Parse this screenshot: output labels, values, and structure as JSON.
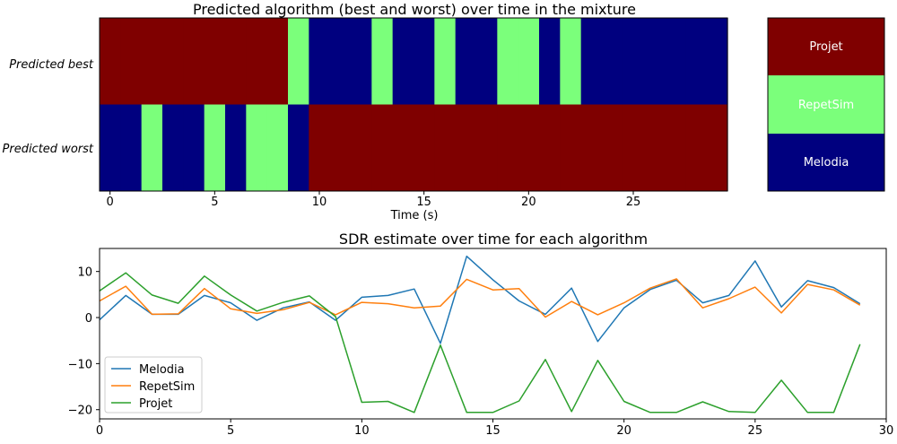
{
  "chart_data": [
    {
      "type": "heatmap",
      "title": "Predicted algorithm (best and worst) over time in the mixture",
      "xlabel": "Time (s)",
      "xlim": [
        -0.5,
        29.5
      ],
      "xticks": [
        0,
        5,
        10,
        15,
        20,
        25
      ],
      "rows": [
        "Predicted best",
        "Predicted worst"
      ],
      "categories": [
        "Melodia",
        "RepetSim",
        "Projet"
      ],
      "category_colors": {
        "Melodia": "#00007f",
        "RepetSim": "#7bff7b",
        "Projet": "#7f0000"
      },
      "colorbar_order": [
        "Projet",
        "RepetSim",
        "Melodia"
      ],
      "best": [
        "Projet",
        "Projet",
        "Projet",
        "Projet",
        "Projet",
        "Projet",
        "Projet",
        "Projet",
        "Projet",
        "RepetSim",
        "Melodia",
        "Melodia",
        "Melodia",
        "RepetSim",
        "Melodia",
        "Melodia",
        "RepetSim",
        "Melodia",
        "Melodia",
        "RepetSim",
        "RepetSim",
        "Melodia",
        "RepetSim",
        "Melodia",
        "Melodia",
        "Melodia",
        "Melodia",
        "Melodia",
        "Melodia",
        "Melodia"
      ],
      "worst": [
        "Melodia",
        "Melodia",
        "RepetSim",
        "Melodia",
        "Melodia",
        "RepetSim",
        "Melodia",
        "RepetSim",
        "RepetSim",
        "Melodia",
        "Projet",
        "Projet",
        "Projet",
        "Projet",
        "Projet",
        "Projet",
        "Projet",
        "Projet",
        "Projet",
        "Projet",
        "Projet",
        "Projet",
        "Projet",
        "Projet",
        "Projet",
        "Projet",
        "Projet",
        "Projet",
        "Projet",
        "Projet"
      ]
    },
    {
      "type": "line",
      "title": "SDR estimate over time for each algorithm",
      "xlim": [
        0,
        30
      ],
      "ylim": [
        -22,
        15
      ],
      "xticks": [
        0,
        5,
        10,
        15,
        20,
        25,
        30
      ],
      "yticks": [
        -20,
        -10,
        0,
        10
      ],
      "x": [
        0,
        1,
        2,
        3,
        4,
        5,
        6,
        7,
        8,
        9,
        10,
        11,
        12,
        13,
        14,
        15,
        16,
        17,
        18,
        19,
        20,
        21,
        22,
        23,
        24,
        25,
        26,
        27,
        28,
        29
      ],
      "legend_loc": "lower-left",
      "series": [
        {
          "name": "Melodia",
          "color": "#1f77b4",
          "values": [
            -0.5,
            4.8,
            0.7,
            0.7,
            4.8,
            3.2,
            -0.6,
            2.1,
            3.4,
            -0.6,
            4.4,
            4.8,
            6.2,
            -5.6,
            13.3,
            8.2,
            3.6,
            0.7,
            6.4,
            -5.2,
            2.1,
            6.1,
            8.1,
            3.2,
            4.8,
            12.3,
            2.3,
            8.0,
            6.5,
            3.0
          ]
        },
        {
          "name": "RepetSim",
          "color": "#ff7f0e",
          "values": [
            3.6,
            6.8,
            0.7,
            0.8,
            6.3,
            1.9,
            0.9,
            1.7,
            3.3,
            0.6,
            3.3,
            3.0,
            2.1,
            2.5,
            8.3,
            6.0,
            6.3,
            0.1,
            3.5,
            0.6,
            3.2,
            6.4,
            8.4,
            2.1,
            4.1,
            6.6,
            1.0,
            7.2,
            6.0,
            2.7
          ]
        },
        {
          "name": "Projet",
          "color": "#2ca02c",
          "values": [
            5.8,
            9.7,
            4.9,
            3.1,
            9.0,
            4.9,
            1.4,
            3.3,
            4.7,
            0.2,
            -18.4,
            -18.2,
            -20.6,
            -6.0,
            -20.6,
            -20.6,
            -18.1,
            -9.1,
            -20.4,
            -9.3,
            -18.2,
            -20.6,
            -20.6,
            -18.3,
            -20.4,
            -20.6,
            -13.6,
            -20.6,
            -20.6,
            -5.8
          ]
        }
      ]
    }
  ]
}
